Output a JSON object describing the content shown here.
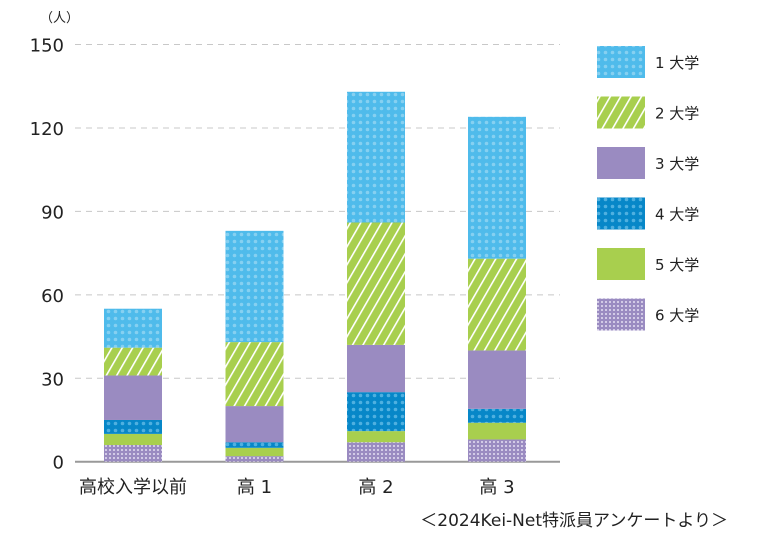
{
  "chart_data": {
    "type": "bar",
    "stacked": true,
    "ylabel": "（人）",
    "ylim": [
      0,
      150
    ],
    "yticks": [
      0,
      30,
      60,
      90,
      120,
      150
    ],
    "grid": true,
    "legend_position": "right",
    "categories": [
      "高校入学以前",
      "高 1",
      "高 2",
      "高 3"
    ],
    "series": [
      {
        "name": "6 大学",
        "color": "#9a8bc1",
        "pattern": "grid",
        "values": [
          6,
          2,
          7,
          8
        ]
      },
      {
        "name": "5 大学",
        "color": "#a8cf4e",
        "pattern": "solid",
        "values": [
          4,
          3,
          4,
          6
        ]
      },
      {
        "name": "4 大学",
        "color": "#0787c8",
        "pattern": "dots",
        "values": [
          5,
          2,
          14,
          5
        ]
      },
      {
        "name": "3 大学",
        "color": "#9a8bc1",
        "pattern": "solid",
        "values": [
          16,
          13,
          17,
          21
        ]
      },
      {
        "name": "2 大学",
        "color": "#a8cf4e",
        "pattern": "stripes",
        "values": [
          10,
          23,
          44,
          33
        ]
      },
      {
        "name": "1 大学",
        "color": "#4fbbeb",
        "pattern": "dots-light",
        "values": [
          14,
          40,
          47,
          51
        ]
      }
    ],
    "source": "＜2024Kei-Net特派員アンケートより＞"
  }
}
